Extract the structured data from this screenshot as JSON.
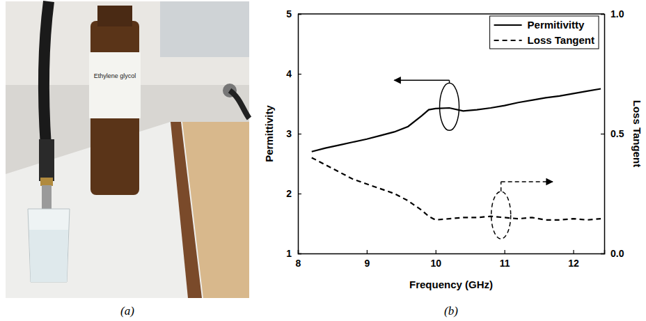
{
  "panels": {
    "a": "(a)",
    "b": "(b)"
  },
  "photo": {
    "bottle_label": "Ethylene glycol"
  },
  "chart_data": {
    "type": "line",
    "x_label": "Frequency (GHz)",
    "y_label": "Permittivity",
    "y2_label": "Loss Tangent",
    "x": [
      8.2,
      8.4,
      8.6,
      8.8,
      9.0,
      9.2,
      9.4,
      9.6,
      9.8,
      9.9,
      10.0,
      10.2,
      10.4,
      10.6,
      10.8,
      11.0,
      11.2,
      11.4,
      11.6,
      11.8,
      12.0,
      12.2,
      12.4
    ],
    "series": [
      {
        "name": "Permitivitty",
        "color": "#000000",
        "line_style": "solid",
        "values": [
          2.7,
          2.76,
          2.81,
          2.86,
          2.91,
          2.97,
          3.03,
          3.12,
          3.3,
          3.4,
          3.42,
          3.43,
          3.38,
          3.4,
          3.43,
          3.47,
          3.52,
          3.56,
          3.6,
          3.63,
          3.67,
          3.71,
          3.75
        ]
      },
      {
        "name": "Loss Tangent",
        "color": "#000000",
        "line_style": "dashed",
        "axis": "y2",
        "values": [
          0.4,
          0.37,
          0.34,
          0.31,
          0.29,
          0.27,
          0.25,
          0.22,
          0.18,
          0.155,
          0.14,
          0.145,
          0.15,
          0.15,
          0.155,
          0.15,
          0.145,
          0.15,
          0.14,
          0.14,
          0.145,
          0.14,
          0.145
        ]
      }
    ],
    "xlim": [
      8,
      12.45
    ],
    "xticks": [
      8,
      9,
      10,
      11,
      12
    ],
    "ylim": [
      1,
      5
    ],
    "yticks": [
      1,
      2,
      3,
      4,
      5
    ],
    "y2lim": [
      0,
      1
    ],
    "y2ticks": [
      {
        "value": 0,
        "label": "0.0"
      },
      {
        "value": 0.5,
        "label": "0.5"
      },
      {
        "value": 1,
        "label": "1.0"
      }
    ],
    "legend": "top-right",
    "grid": false
  }
}
